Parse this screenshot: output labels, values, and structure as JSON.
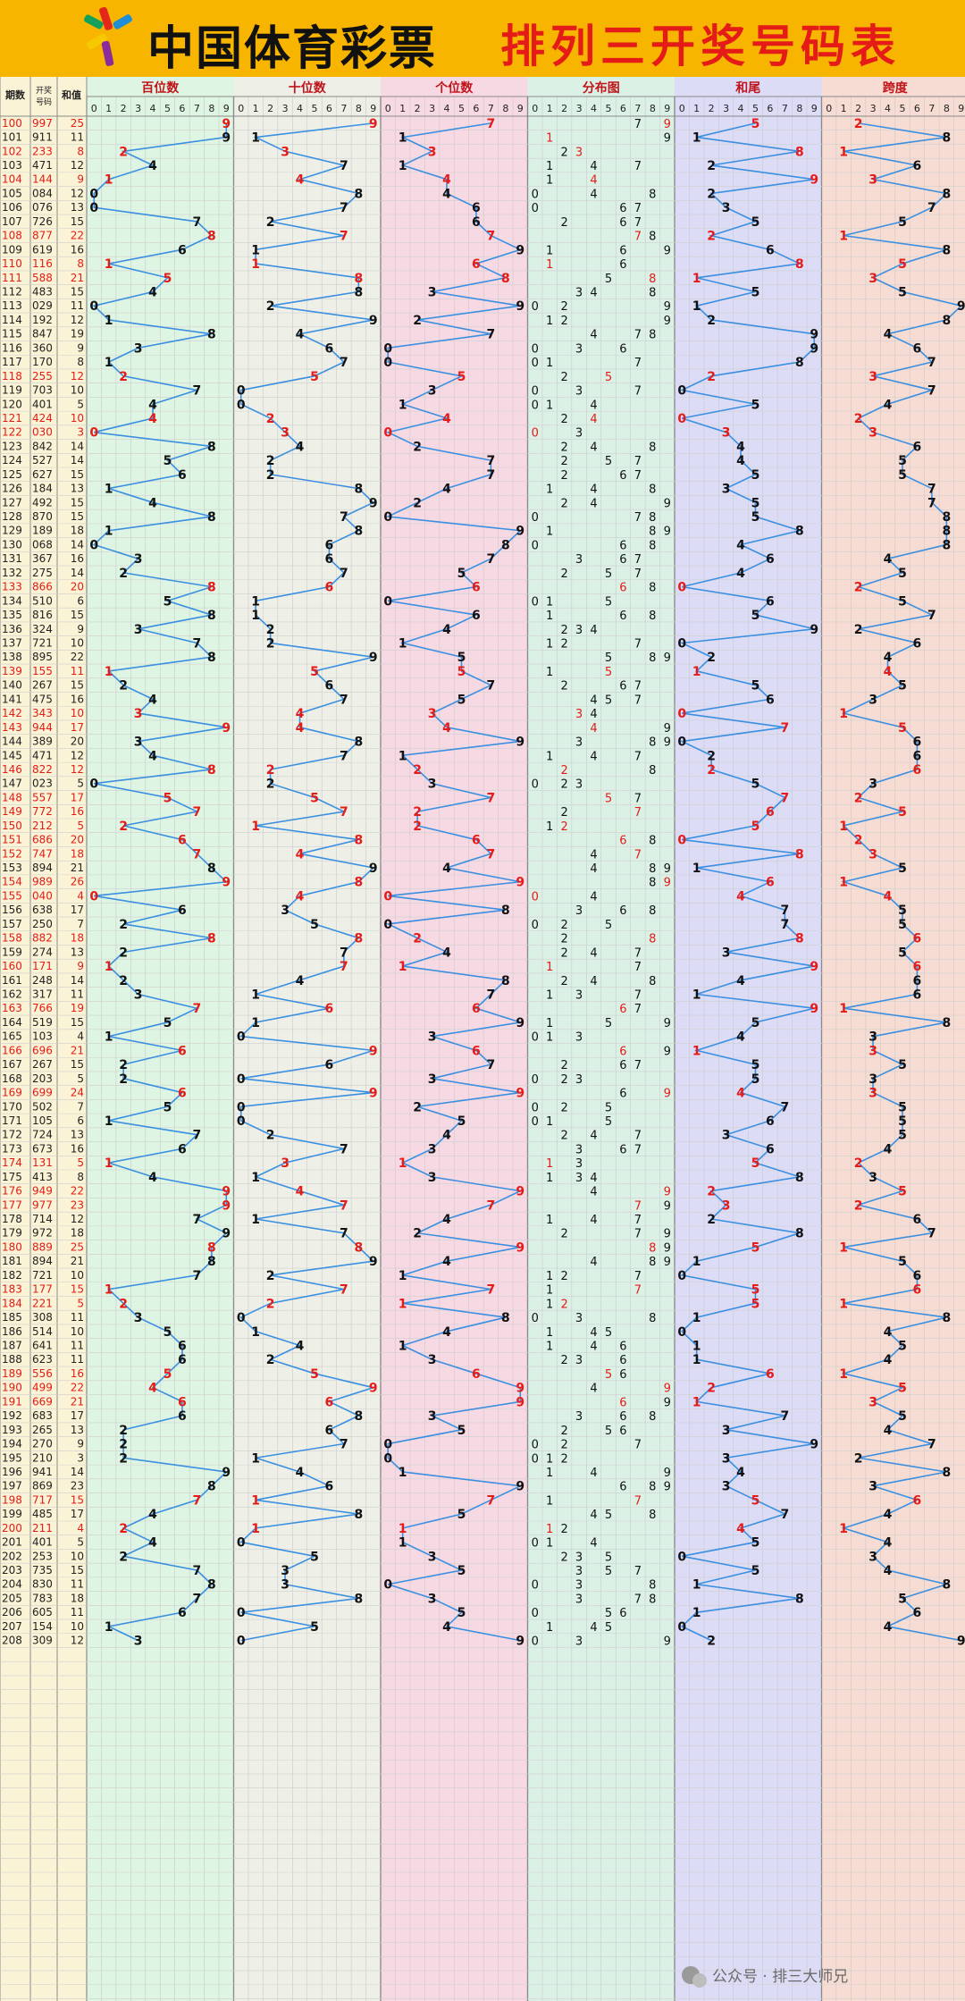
{
  "header": {
    "brand": "中国体育彩票",
    "title": "排列三开奖号码表",
    "logo_icon": "sports-lottery-logo-icon"
  },
  "columns": {
    "issue_label": "期数",
    "number_label": "开奖号码",
    "sum_label": "和值",
    "sections": [
      "百位数",
      "十位数",
      "个位数",
      "分布图",
      "和尾",
      "跨度"
    ],
    "digits": [
      "0",
      "1",
      "2",
      "3",
      "4",
      "5",
      "6",
      "7",
      "8",
      "9"
    ]
  },
  "colors": {
    "red": "#e41b17",
    "line": "#3a8fe0",
    "green_bg": "#dff5e3",
    "gray_bg": "#eef0e8",
    "pink_bg": "#f7d9e4",
    "mint_bg": "#dcf1e6",
    "lavender_bg": "#dcdcf7",
    "peach_bg": "#f7dcd3"
  },
  "draws": [
    {
      "issue": "100",
      "number": "997",
      "sum": "25",
      "red": true
    },
    {
      "issue": "101",
      "number": "911",
      "sum": "11",
      "red": false
    },
    {
      "issue": "102",
      "number": "233",
      "sum": "8",
      "red": true
    },
    {
      "issue": "103",
      "number": "471",
      "sum": "12",
      "red": false
    },
    {
      "issue": "104",
      "number": "144",
      "sum": "9",
      "red": true
    },
    {
      "issue": "105",
      "number": "084",
      "sum": "12",
      "red": false
    },
    {
      "issue": "106",
      "number": "076",
      "sum": "13",
      "red": false
    },
    {
      "issue": "107",
      "number": "726",
      "sum": "15",
      "red": false
    },
    {
      "issue": "108",
      "number": "877",
      "sum": "22",
      "red": true
    },
    {
      "issue": "109",
      "number": "619",
      "sum": "16",
      "red": false
    },
    {
      "issue": "110",
      "number": "116",
      "sum": "8",
      "red": true
    },
    {
      "issue": "111",
      "number": "588",
      "sum": "21",
      "red": true
    },
    {
      "issue": "112",
      "number": "483",
      "sum": "15",
      "red": false
    },
    {
      "issue": "113",
      "number": "029",
      "sum": "11",
      "red": false
    },
    {
      "issue": "114",
      "number": "192",
      "sum": "12",
      "red": false
    },
    {
      "issue": "115",
      "number": "847",
      "sum": "19",
      "red": false
    },
    {
      "issue": "116",
      "number": "360",
      "sum": "9",
      "red": false
    },
    {
      "issue": "117",
      "number": "170",
      "sum": "8",
      "red": false
    },
    {
      "issue": "118",
      "number": "255",
      "sum": "12",
      "red": true
    },
    {
      "issue": "119",
      "number": "703",
      "sum": "10",
      "red": false
    },
    {
      "issue": "120",
      "number": "401",
      "sum": "5",
      "red": false
    },
    {
      "issue": "121",
      "number": "424",
      "sum": "10",
      "red": true
    },
    {
      "issue": "122",
      "number": "030",
      "sum": "3",
      "red": true
    },
    {
      "issue": "123",
      "number": "842",
      "sum": "14",
      "red": false
    },
    {
      "issue": "124",
      "number": "527",
      "sum": "14",
      "red": false
    },
    {
      "issue": "125",
      "number": "627",
      "sum": "15",
      "red": false
    },
    {
      "issue": "126",
      "number": "184",
      "sum": "13",
      "red": false
    },
    {
      "issue": "127",
      "number": "492",
      "sum": "15",
      "red": false
    },
    {
      "issue": "128",
      "number": "870",
      "sum": "15",
      "red": false
    },
    {
      "issue": "129",
      "number": "189",
      "sum": "18",
      "red": false
    },
    {
      "issue": "130",
      "number": "068",
      "sum": "14",
      "red": false
    },
    {
      "issue": "131",
      "number": "367",
      "sum": "16",
      "red": false
    },
    {
      "issue": "132",
      "number": "275",
      "sum": "14",
      "red": false
    },
    {
      "issue": "133",
      "number": "866",
      "sum": "20",
      "red": true
    },
    {
      "issue": "134",
      "number": "510",
      "sum": "6",
      "red": false
    },
    {
      "issue": "135",
      "number": "816",
      "sum": "15",
      "red": false
    },
    {
      "issue": "136",
      "number": "324",
      "sum": "9",
      "red": false
    },
    {
      "issue": "137",
      "number": "721",
      "sum": "10",
      "red": false
    },
    {
      "issue": "138",
      "number": "895",
      "sum": "22",
      "red": false
    },
    {
      "issue": "139",
      "number": "155",
      "sum": "11",
      "red": true
    },
    {
      "issue": "140",
      "number": "267",
      "sum": "15",
      "red": false
    },
    {
      "issue": "141",
      "number": "475",
      "sum": "16",
      "red": false
    },
    {
      "issue": "142",
      "number": "343",
      "sum": "10",
      "red": true
    },
    {
      "issue": "143",
      "number": "944",
      "sum": "17",
      "red": true
    },
    {
      "issue": "144",
      "number": "389",
      "sum": "20",
      "red": false
    },
    {
      "issue": "145",
      "number": "471",
      "sum": "12",
      "red": false
    },
    {
      "issue": "146",
      "number": "822",
      "sum": "12",
      "red": true
    },
    {
      "issue": "147",
      "number": "023",
      "sum": "5",
      "red": false
    },
    {
      "issue": "148",
      "number": "557",
      "sum": "17",
      "red": true
    },
    {
      "issue": "149",
      "number": "772",
      "sum": "16",
      "red": true
    },
    {
      "issue": "150",
      "number": "212",
      "sum": "5",
      "red": true
    },
    {
      "issue": "151",
      "number": "686",
      "sum": "20",
      "red": true
    },
    {
      "issue": "152",
      "number": "747",
      "sum": "18",
      "red": true
    },
    {
      "issue": "153",
      "number": "894",
      "sum": "21",
      "red": false
    },
    {
      "issue": "154",
      "number": "989",
      "sum": "26",
      "red": true
    },
    {
      "issue": "155",
      "number": "040",
      "sum": "4",
      "red": true
    },
    {
      "issue": "156",
      "number": "638",
      "sum": "17",
      "red": false
    },
    {
      "issue": "157",
      "number": "250",
      "sum": "7",
      "red": false
    },
    {
      "issue": "158",
      "number": "882",
      "sum": "18",
      "red": true
    },
    {
      "issue": "159",
      "number": "274",
      "sum": "13",
      "red": false
    },
    {
      "issue": "160",
      "number": "171",
      "sum": "9",
      "red": true
    },
    {
      "issue": "161",
      "number": "248",
      "sum": "14",
      "red": false
    },
    {
      "issue": "162",
      "number": "317",
      "sum": "11",
      "red": false
    },
    {
      "issue": "163",
      "number": "766",
      "sum": "19",
      "red": true
    },
    {
      "issue": "164",
      "number": "519",
      "sum": "15",
      "red": false
    },
    {
      "issue": "165",
      "number": "103",
      "sum": "4",
      "red": false
    },
    {
      "issue": "166",
      "number": "696",
      "sum": "21",
      "red": true
    },
    {
      "issue": "167",
      "number": "267",
      "sum": "15",
      "red": false
    },
    {
      "issue": "168",
      "number": "203",
      "sum": "5",
      "red": false
    },
    {
      "issue": "169",
      "number": "699",
      "sum": "24",
      "red": true
    },
    {
      "issue": "170",
      "number": "502",
      "sum": "7",
      "red": false
    },
    {
      "issue": "171",
      "number": "105",
      "sum": "6",
      "red": false
    },
    {
      "issue": "172",
      "number": "724",
      "sum": "13",
      "red": false
    },
    {
      "issue": "173",
      "number": "673",
      "sum": "16",
      "red": false
    },
    {
      "issue": "174",
      "number": "131",
      "sum": "5",
      "red": true
    },
    {
      "issue": "175",
      "number": "413",
      "sum": "8",
      "red": false
    },
    {
      "issue": "176",
      "number": "949",
      "sum": "22",
      "red": true
    },
    {
      "issue": "177",
      "number": "977",
      "sum": "23",
      "red": true
    },
    {
      "issue": "178",
      "number": "714",
      "sum": "12",
      "red": false
    },
    {
      "issue": "179",
      "number": "972",
      "sum": "18",
      "red": false
    },
    {
      "issue": "180",
      "number": "889",
      "sum": "25",
      "red": true
    },
    {
      "issue": "181",
      "number": "894",
      "sum": "21",
      "red": false
    },
    {
      "issue": "182",
      "number": "721",
      "sum": "10",
      "red": false
    },
    {
      "issue": "183",
      "number": "177",
      "sum": "15",
      "red": true
    },
    {
      "issue": "184",
      "number": "221",
      "sum": "5",
      "red": true
    },
    {
      "issue": "185",
      "number": "308",
      "sum": "11",
      "red": false
    },
    {
      "issue": "186",
      "number": "514",
      "sum": "10",
      "red": false
    },
    {
      "issue": "187",
      "number": "641",
      "sum": "11",
      "red": false
    },
    {
      "issue": "188",
      "number": "623",
      "sum": "11",
      "red": false
    },
    {
      "issue": "189",
      "number": "556",
      "sum": "16",
      "red": true
    },
    {
      "issue": "190",
      "number": "499",
      "sum": "22",
      "red": true
    },
    {
      "issue": "191",
      "number": "669",
      "sum": "21",
      "red": true
    },
    {
      "issue": "192",
      "number": "683",
      "sum": "17",
      "red": false
    },
    {
      "issue": "193",
      "number": "265",
      "sum": "13",
      "red": false
    },
    {
      "issue": "194",
      "number": "270",
      "sum": "9",
      "red": false
    },
    {
      "issue": "195",
      "number": "210",
      "sum": "3",
      "red": false
    },
    {
      "issue": "196",
      "number": "941",
      "sum": "14",
      "red": false
    },
    {
      "issue": "197",
      "number": "869",
      "sum": "23",
      "red": false
    },
    {
      "issue": "198",
      "number": "717",
      "sum": "15",
      "red": true
    },
    {
      "issue": "199",
      "number": "485",
      "sum": "17",
      "red": false
    },
    {
      "issue": "200",
      "number": "211",
      "sum": "4",
      "red": true
    },
    {
      "issue": "201",
      "number": "401",
      "sum": "5",
      "red": false
    },
    {
      "issue": "202",
      "number": "253",
      "sum": "10",
      "red": false
    },
    {
      "issue": "203",
      "number": "735",
      "sum": "15",
      "red": false
    },
    {
      "issue": "204",
      "number": "830",
      "sum": "11",
      "red": false
    },
    {
      "issue": "205",
      "number": "783",
      "sum": "18",
      "red": false
    },
    {
      "issue": "206",
      "number": "605",
      "sum": "11",
      "red": false
    },
    {
      "issue": "207",
      "number": "154",
      "sum": "10",
      "red": false
    },
    {
      "issue": "208",
      "number": "309",
      "sum": "12",
      "red": false
    }
  ],
  "footer": {
    "watermark_icon": "wechat-icon",
    "watermark_text": "公众号 · 排三大师兄"
  }
}
